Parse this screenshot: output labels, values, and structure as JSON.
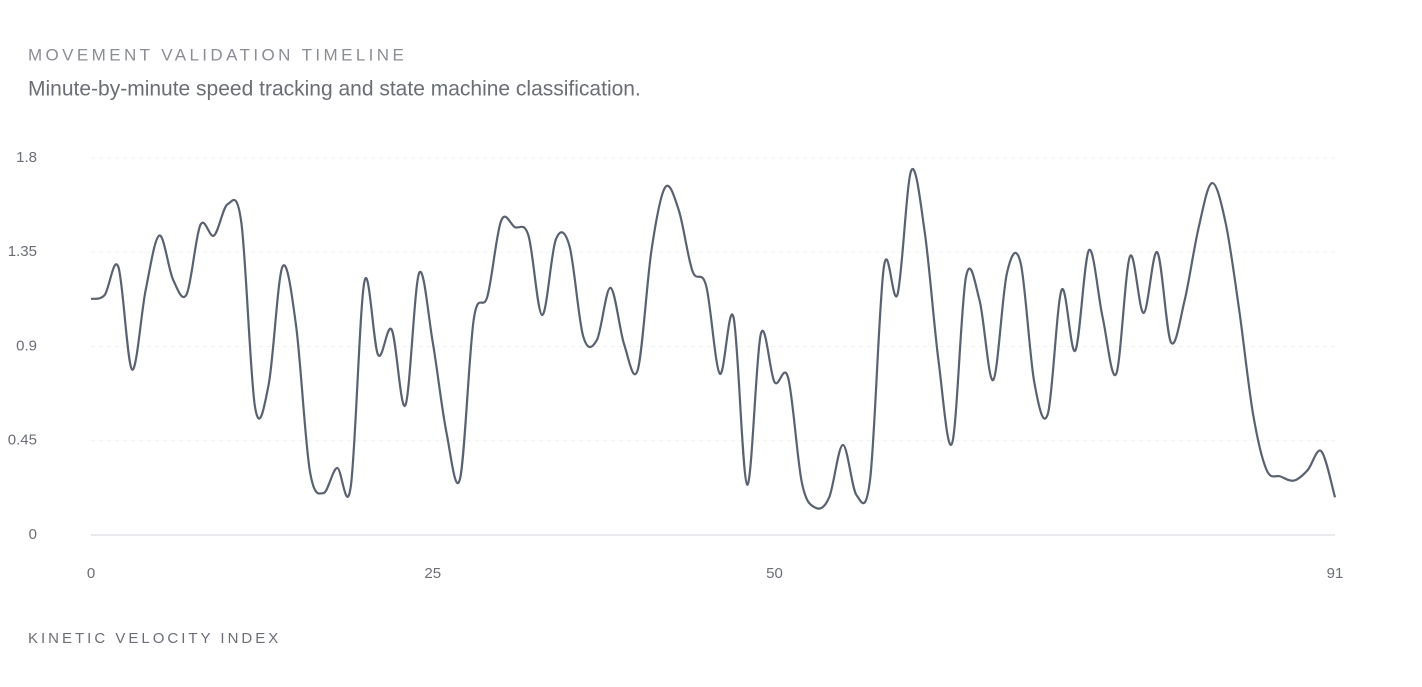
{
  "chart_data": {
    "type": "line",
    "title": "MOVEMENT VALIDATION TIMELINE",
    "subtitle": "Minute-by-minute speed tracking and state machine classification.",
    "y_label": "KINETIC VELOCITY INDEX",
    "x": [
      0,
      1,
      2,
      3,
      4,
      5,
      6,
      7,
      8,
      9,
      10,
      11,
      12,
      13,
      14,
      15,
      16,
      17,
      18,
      19,
      20,
      21,
      22,
      23,
      24,
      25,
      26,
      27,
      28,
      29,
      30,
      31,
      32,
      33,
      34,
      35,
      36,
      37,
      38,
      39,
      40,
      41,
      42,
      43,
      44,
      45,
      46,
      47,
      48,
      49,
      50,
      51,
      52,
      53,
      54,
      55,
      56,
      57,
      58,
      59,
      60,
      61,
      62,
      63,
      64,
      65,
      66,
      67,
      68,
      69,
      70,
      71,
      72,
      73,
      74,
      75,
      76,
      77,
      78,
      79,
      80,
      81,
      82,
      83,
      84,
      85,
      86,
      87,
      88,
      89,
      90,
      91
    ],
    "series": [
      {
        "color": "#5a6170",
        "values": [
          1.127,
          1.146,
          1.28,
          0.79,
          1.17,
          1.43,
          1.22,
          1.15,
          1.48,
          1.43,
          1.58,
          1.49,
          0.61,
          0.72,
          1.28,
          1.0,
          0.31,
          0.2,
          0.32,
          0.23,
          1.21,
          0.86,
          0.98,
          0.62,
          1.25,
          0.92,
          0.49,
          0.27,
          1.03,
          1.14,
          1.5,
          1.47,
          1.43,
          1.05,
          1.41,
          1.38,
          0.95,
          0.93,
          1.18,
          0.91,
          0.79,
          1.36,
          1.66,
          1.55,
          1.26,
          1.19,
          0.77,
          1.04,
          0.24,
          0.96,
          0.73,
          0.75,
          0.25,
          0.13,
          0.18,
          0.43,
          0.19,
          0.27,
          1.28,
          1.15,
          1.74,
          1.44,
          0.83,
          0.44,
          1.23,
          1.12,
          0.74,
          1.25,
          1.3,
          0.73,
          0.58,
          1.17,
          0.88,
          1.36,
          1.04,
          0.77,
          1.33,
          1.06,
          1.35,
          0.92,
          1.12,
          1.46,
          1.68,
          1.49,
          1.07,
          0.58,
          0.31,
          0.28,
          0.26,
          0.31,
          0.4,
          0.18
        ]
      }
    ],
    "xlim": [
      0,
      91
    ],
    "xticks": [
      0,
      25,
      50,
      91
    ],
    "ylim": [
      0,
      1.8
    ],
    "yticks": [
      0,
      0.45,
      0.9,
      1.35,
      1.8
    ],
    "grid": true
  }
}
